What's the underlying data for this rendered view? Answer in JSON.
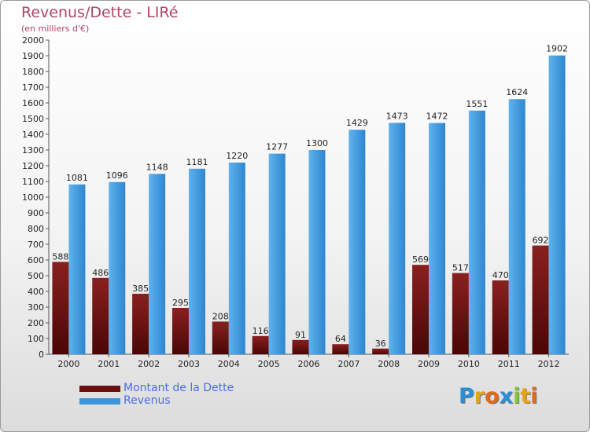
{
  "header": {
    "title": "Revenus/Dette - LIRé",
    "subtitle": "(en milliers d'€)"
  },
  "chart_data": {
    "type": "bar",
    "title": "Revenus/Dette - LIRé",
    "subtitle": "(en milliers d'€)",
    "categories": [
      "2000",
      "2001",
      "2002",
      "2003",
      "2004",
      "2005",
      "2006",
      "2007",
      "2008",
      "2009",
      "2010",
      "2011",
      "2012"
    ],
    "series": [
      {
        "name": "Montant de la Dette",
        "color": "#7a1515",
        "values": [
          588,
          486,
          385,
          295,
          208,
          116,
          91,
          64,
          36,
          569,
          517,
          470,
          692
        ]
      },
      {
        "name": "Revenus",
        "color": "#3a95dc",
        "values": [
          1081,
          1096,
          1148,
          1181,
          1220,
          1277,
          1300,
          1429,
          1473,
          1472,
          1551,
          1624,
          1902
        ]
      }
    ],
    "ylim": [
      0,
      2000
    ],
    "yticks": [
      0,
      100,
      200,
      300,
      400,
      500,
      600,
      700,
      800,
      900,
      1000,
      1100,
      1200,
      1300,
      1400,
      1500,
      1600,
      1700,
      1800,
      1900,
      2000
    ],
    "grid": false,
    "legend_position": "bottom-left"
  },
  "legend": {
    "items": [
      {
        "label": "Montant de la Dette",
        "color": "#6b0f0f"
      },
      {
        "label": "Revenus",
        "color": "#3a95dc"
      }
    ]
  },
  "logo": {
    "letters": [
      {
        "ch": "P",
        "color": "#2a8fd6"
      },
      {
        "ch": "r",
        "color": "#e8a316"
      },
      {
        "ch": "o",
        "color": "#e06a1a"
      },
      {
        "ch": "x",
        "color": "#2a8fd6"
      },
      {
        "ch": "i",
        "color": "#86c43a"
      },
      {
        "ch": "t",
        "color": "#e8a316"
      },
      {
        "ch": "i",
        "color": "#e06a1a"
      }
    ]
  }
}
